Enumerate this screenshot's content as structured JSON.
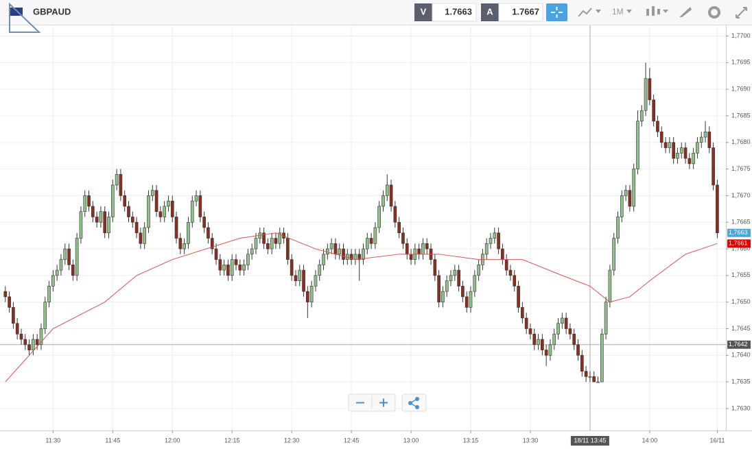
{
  "toolbar": {
    "symbol": "GBPAUD",
    "bid_label": "V",
    "bid": "1.7663",
    "ask_label": "A",
    "ask": "1.7667",
    "timeframe": "1M"
  },
  "chart_data": {
    "type": "candlestick",
    "open": [
      1.7652,
      1.7651,
      1.7649,
      1.7646,
      1.7644,
      1.7643,
      1.7642,
      1.7641,
      1.7643,
      1.7642,
      1.7645,
      1.765,
      1.7653,
      1.7655,
      1.7656,
      1.7658,
      1.766,
      1.7657,
      1.7655,
      1.7662,
      1.7667,
      1.767,
      1.7668,
      1.7666,
      1.7665,
      1.7667,
      1.7663,
      1.7666,
      1.7672,
      1.7674,
      1.767,
      1.7668,
      1.7666,
      1.7665,
      1.7663,
      1.7661,
      1.7664,
      1.767,
      1.7671,
      1.7667,
      1.7666,
      1.7668,
      1.7669,
      1.7666,
      1.7662,
      1.766,
      1.7661,
      1.7665,
      1.7669,
      1.767,
      1.7666,
      1.7664,
      1.7662,
      1.766,
      1.7658,
      1.7656,
      1.7657,
      1.7655,
      1.7658,
      1.7657,
      1.7656,
      1.7657,
      1.7659,
      1.766,
      1.7662,
      1.7663,
      1.7661,
      1.766,
      1.7662,
      1.7661,
      1.7663,
      1.7662,
      1.7658,
      1.7655,
      1.7654,
      1.7656,
      1.7652,
      1.765,
      1.7653,
      1.7655,
      1.7657,
      1.7659,
      1.766,
      1.7661,
      1.7659,
      1.766,
      1.7658,
      1.7659,
      1.7658,
      1.7659,
      1.7658,
      1.766,
      1.7662,
      1.7661,
      1.7664,
      1.7668,
      1.767,
      1.7672,
      1.7668,
      1.7665,
      1.7663,
      1.7661,
      1.7659,
      1.7658,
      1.766,
      1.7659,
      1.7661,
      1.766,
      1.7658,
      1.7655,
      1.765,
      1.7652,
      1.7654,
      1.7655,
      1.7656,
      1.7653,
      1.7651,
      1.7649,
      1.7652,
      1.7655,
      1.7657,
      1.7659,
      1.7661,
      1.7662,
      1.7663,
      1.766,
      1.7658,
      1.7656,
      1.7655,
      1.7653,
      1.7649,
      1.7647,
      1.7645,
      1.7644,
      1.7642,
      1.7643,
      1.7641,
      1.764,
      1.7642,
      1.7644,
      1.7646,
      1.7647,
      1.7645,
      1.7644,
      1.7642,
      1.764,
      1.7637,
      1.7636,
      1.7636,
      1.7635,
      1.7635,
      1.7644,
      1.765,
      1.7656,
      1.7662,
      1.7666,
      1.767,
      1.7671,
      1.7668,
      1.7675,
      1.7684,
      1.7686,
      1.7692,
      1.7688,
      1.7684,
      1.7682,
      1.768,
      1.7679,
      1.768,
      1.7677,
      1.7678,
      1.7679,
      1.7677,
      1.7676,
      1.7678,
      1.768,
      1.7681,
      1.7682,
      1.7679,
      1.7672
    ],
    "high": [
      1.7653,
      1.7652,
      1.765,
      1.7647,
      1.7645,
      1.7644,
      1.7643,
      1.7644,
      1.7644,
      1.7646,
      1.7651,
      1.7654,
      1.7656,
      1.7657,
      1.7659,
      1.7661,
      1.7661,
      1.7658,
      1.7663,
      1.7668,
      1.7671,
      1.7671,
      1.7669,
      1.7667,
      1.7668,
      1.7668,
      1.7667,
      1.7673,
      1.7675,
      1.7675,
      1.7671,
      1.7669,
      1.7667,
      1.7666,
      1.7664,
      1.7665,
      1.7671,
      1.7672,
      1.7672,
      1.7668,
      1.7669,
      1.767,
      1.767,
      1.7667,
      1.7663,
      1.7662,
      1.7666,
      1.767,
      1.7671,
      1.7671,
      1.7667,
      1.7665,
      1.7663,
      1.7661,
      1.7659,
      1.7658,
      1.7658,
      1.7659,
      1.7659,
      1.7658,
      1.7658,
      1.766,
      1.7661,
      1.7663,
      1.7664,
      1.7664,
      1.7662,
      1.7663,
      1.7663,
      1.7664,
      1.7664,
      1.7663,
      1.7659,
      1.7656,
      1.7657,
      1.7657,
      1.7653,
      1.7654,
      1.7656,
      1.7658,
      1.766,
      1.7661,
      1.7662,
      1.7662,
      1.7661,
      1.7661,
      1.766,
      1.766,
      1.766,
      1.766,
      1.7661,
      1.7663,
      1.7663,
      1.7665,
      1.7669,
      1.7671,
      1.7674,
      1.7673,
      1.7669,
      1.7666,
      1.7664,
      1.7662,
      1.766,
      1.7661,
      1.7661,
      1.7662,
      1.7662,
      1.7661,
      1.7659,
      1.7656,
      1.7653,
      1.7655,
      1.7656,
      1.7657,
      1.7657,
      1.7654,
      1.7652,
      1.7653,
      1.7656,
      1.7658,
      1.766,
      1.7662,
      1.7663,
      1.7664,
      1.7664,
      1.7661,
      1.7659,
      1.7657,
      1.7656,
      1.7654,
      1.765,
      1.7648,
      1.7646,
      1.7645,
      1.7644,
      1.7644,
      1.7642,
      1.7643,
      1.7645,
      1.7647,
      1.7648,
      1.7648,
      1.7646,
      1.7645,
      1.7643,
      1.7641,
      1.7638,
      1.7637,
      1.7637,
      1.7636,
      1.7645,
      1.7651,
      1.7657,
      1.7663,
      1.7667,
      1.7671,
      1.7672,
      1.7672,
      1.7676,
      1.7686,
      1.7687,
      1.7695,
      1.7694,
      1.7689,
      1.7685,
      1.7683,
      1.7681,
      1.7681,
      1.7681,
      1.7679,
      1.768,
      1.768,
      1.7678,
      1.7679,
      1.7681,
      1.7682,
      1.7684,
      1.7683,
      1.768,
      1.7673
    ],
    "low": [
      1.765,
      1.7648,
      1.7645,
      1.7643,
      1.7642,
      1.7641,
      1.764,
      1.764,
      1.7641,
      1.7641,
      1.7644,
      1.7649,
      1.7652,
      1.7654,
      1.7655,
      1.7657,
      1.7656,
      1.7654,
      1.7654,
      1.7661,
      1.7666,
      1.7667,
      1.7665,
      1.7664,
      1.7664,
      1.7662,
      1.7662,
      1.7665,
      1.7671,
      1.7669,
      1.7667,
      1.7665,
      1.7664,
      1.7662,
      1.766,
      1.766,
      1.7663,
      1.7669,
      1.7666,
      1.7665,
      1.7665,
      1.7667,
      1.7665,
      1.7661,
      1.7659,
      1.7659,
      1.766,
      1.7664,
      1.7668,
      1.7665,
      1.7663,
      1.7661,
      1.7659,
      1.7657,
      1.7655,
      1.7655,
      1.7654,
      1.7654,
      1.7656,
      1.7655,
      1.7655,
      1.7656,
      1.7658,
      1.7659,
      1.7661,
      1.766,
      1.7659,
      1.7659,
      1.766,
      1.766,
      1.7661,
      1.7657,
      1.7654,
      1.7653,
      1.7653,
      1.7651,
      1.7647,
      1.7649,
      1.7652,
      1.7654,
      1.7656,
      1.7658,
      1.7659,
      1.7658,
      1.7658,
      1.7657,
      1.7657,
      1.7657,
      1.7657,
      1.7654,
      1.7657,
      1.7659,
      1.766,
      1.766,
      1.7663,
      1.7667,
      1.7669,
      1.7667,
      1.7664,
      1.7662,
      1.766,
      1.7658,
      1.7657,
      1.7657,
      1.7658,
      1.7658,
      1.7659,
      1.7657,
      1.7654,
      1.7649,
      1.7649,
      1.7651,
      1.7653,
      1.7654,
      1.7652,
      1.765,
      1.7648,
      1.7648,
      1.7651,
      1.7654,
      1.7656,
      1.7658,
      1.766,
      1.7661,
      1.7659,
      1.7657,
      1.7655,
      1.7654,
      1.7652,
      1.7648,
      1.7646,
      1.7644,
      1.7643,
      1.7641,
      1.7641,
      1.764,
      1.7638,
      1.7639,
      1.7641,
      1.7643,
      1.7645,
      1.7644,
      1.7643,
      1.7641,
      1.7639,
      1.7636,
      1.7635,
      1.7635,
      1.7635,
      1.7635,
      1.7635,
      1.7643,
      1.7649,
      1.7655,
      1.7661,
      1.7665,
      1.7669,
      1.7667,
      1.7667,
      1.7674,
      1.7683,
      1.7685,
      1.7687,
      1.7683,
      1.7681,
      1.7679,
      1.7678,
      1.7678,
      1.7676,
      1.7676,
      1.7677,
      1.7676,
      1.7675,
      1.7675,
      1.7677,
      1.7679,
      1.768,
      1.7678,
      1.7671,
      1.7662
    ],
    "close": [
      1.7651,
      1.7649,
      1.7646,
      1.7644,
      1.7643,
      1.7642,
      1.7641,
      1.7643,
      1.7642,
      1.7645,
      1.765,
      1.7653,
      1.7655,
      1.7656,
      1.7658,
      1.766,
      1.7657,
      1.7655,
      1.7662,
      1.7667,
      1.767,
      1.7668,
      1.7666,
      1.7665,
      1.7667,
      1.7663,
      1.7666,
      1.7672,
      1.7674,
      1.767,
      1.7668,
      1.7666,
      1.7665,
      1.7663,
      1.7661,
      1.7664,
      1.767,
      1.7671,
      1.7667,
      1.7666,
      1.7668,
      1.7669,
      1.7666,
      1.7662,
      1.766,
      1.7661,
      1.7665,
      1.7669,
      1.767,
      1.7666,
      1.7664,
      1.7662,
      1.766,
      1.7658,
      1.7656,
      1.7657,
      1.7655,
      1.7658,
      1.7657,
      1.7656,
      1.7657,
      1.7659,
      1.766,
      1.7662,
      1.7663,
      1.7661,
      1.766,
      1.7662,
      1.7661,
      1.7663,
      1.7662,
      1.7658,
      1.7655,
      1.7654,
      1.7656,
      1.7652,
      1.765,
      1.7653,
      1.7655,
      1.7657,
      1.7659,
      1.766,
      1.7661,
      1.7659,
      1.766,
      1.7658,
      1.7659,
      1.7658,
      1.7659,
      1.7658,
      1.766,
      1.7662,
      1.7661,
      1.7664,
      1.7668,
      1.767,
      1.7672,
      1.7668,
      1.7665,
      1.7663,
      1.7661,
      1.7659,
      1.7658,
      1.766,
      1.7659,
      1.7661,
      1.766,
      1.7658,
      1.7655,
      1.765,
      1.7652,
      1.7654,
      1.7655,
      1.7656,
      1.7653,
      1.7651,
      1.7649,
      1.7652,
      1.7655,
      1.7657,
      1.7659,
      1.7661,
      1.7662,
      1.7663,
      1.766,
      1.7658,
      1.7656,
      1.7655,
      1.7653,
      1.7649,
      1.7647,
      1.7645,
      1.7644,
      1.7642,
      1.7643,
      1.7641,
      1.764,
      1.7642,
      1.7644,
      1.7646,
      1.7647,
      1.7645,
      1.7644,
      1.7642,
      1.764,
      1.7637,
      1.7636,
      1.7636,
      1.7635,
      1.7635,
      1.7644,
      1.765,
      1.7656,
      1.7662,
      1.7666,
      1.767,
      1.7671,
      1.7668,
      1.7675,
      1.7684,
      1.7686,
      1.7692,
      1.7688,
      1.7684,
      1.7682,
      1.768,
      1.7679,
      1.768,
      1.7677,
      1.7678,
      1.7679,
      1.7677,
      1.7676,
      1.7678,
      1.768,
      1.7681,
      1.7682,
      1.7679,
      1.7672,
      1.7663
    ],
    "up_color": "#8fbf8a",
    "down_color": "#8b2e1f",
    "ma": {
      "color": "#d9534f",
      "x": [
        0,
        12,
        25,
        33,
        42,
        59,
        68,
        78,
        88,
        99,
        109,
        119,
        130,
        140,
        147,
        152,
        157,
        162,
        171,
        179
      ],
      "values": [
        1.7635,
        1.7645,
        1.765,
        1.7655,
        1.7658,
        1.7662,
        1.7663,
        1.766,
        1.7658,
        1.7659,
        1.7659,
        1.7658,
        1.7658,
        1.7655,
        1.7653,
        1.765,
        1.7651,
        1.7654,
        1.7659,
        1.7661
      ]
    },
    "xlim": [
      -1,
      181
    ],
    "ylim": [
      1.7626,
      1.7702
    ],
    "xticks": [
      {
        "value": 12,
        "label": "11:30"
      },
      {
        "value": 27,
        "label": "11:45"
      },
      {
        "value": 42,
        "label": "12:00"
      },
      {
        "value": 57,
        "label": "12:15"
      },
      {
        "value": 72,
        "label": "12:30"
      },
      {
        "value": 87,
        "label": "12:45"
      },
      {
        "value": 102,
        "label": "13:00"
      },
      {
        "value": 117,
        "label": "13:15"
      },
      {
        "value": 132,
        "label": "13:30"
      },
      {
        "value": 162,
        "label": "14:00"
      },
      {
        "value": 179,
        "label": "16/11"
      }
    ],
    "yticks": [
      {
        "value": 1.763,
        "label": "1,7630"
      },
      {
        "value": 1.7635,
        "label": "1,7635"
      },
      {
        "value": 1.764,
        "label": "1,7640"
      },
      {
        "value": 1.7645,
        "label": "1,7645"
      },
      {
        "value": 1.765,
        "label": "1,7650"
      },
      {
        "value": 1.7655,
        "label": "1,7655"
      },
      {
        "value": 1.766,
        "label": "1,7660"
      },
      {
        "value": 1.7665,
        "label": "1,7665"
      },
      {
        "value": 1.767,
        "label": "1,7670"
      },
      {
        "value": 1.7675,
        "label": "1,7675"
      },
      {
        "value": 1.768,
        "label": "1,7680"
      },
      {
        "value": 1.7685,
        "label": "1,7685"
      },
      {
        "value": 1.769,
        "label": "1,7690"
      },
      {
        "value": 1.7695,
        "label": "1,7695"
      },
      {
        "value": 1.77,
        "label": "1,7700"
      }
    ],
    "grid": true,
    "markers": [
      {
        "value": 1.7663,
        "label": "1,7663",
        "color": "#4da6d9"
      },
      {
        "value": 1.7661,
        "label": "1,7661",
        "color": "#e00000"
      }
    ],
    "crosshair": {
      "x": 147,
      "x_label": "18/11 13:45",
      "y": 1.7642,
      "y_label": "1,7642"
    }
  }
}
